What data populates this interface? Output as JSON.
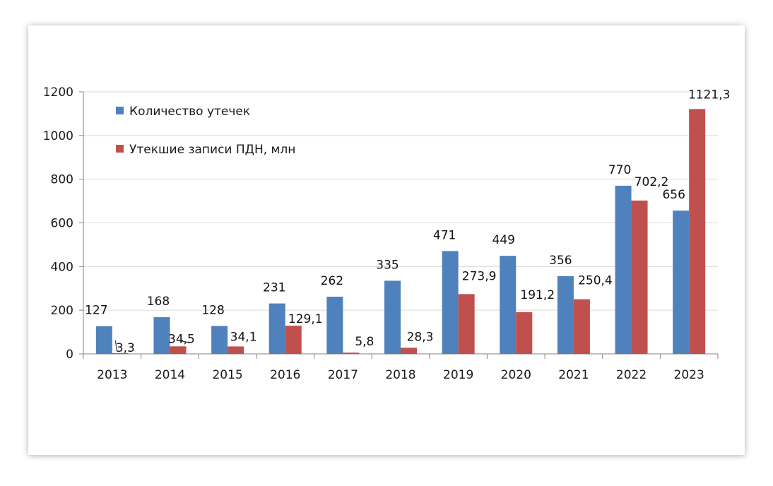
{
  "chart_data": {
    "type": "bar",
    "categories": [
      "2013",
      "2014",
      "2015",
      "2016",
      "2017",
      "2018",
      "2019",
      "2020",
      "2021",
      "2022",
      "2023"
    ],
    "series": [
      {
        "name": "Количество утечек",
        "color": "#4f81bd",
        "values": [
          127,
          168,
          128,
          231,
          262,
          335,
          471,
          449,
          356,
          770,
          656
        ],
        "labels": [
          "127",
          "168",
          "128",
          "231",
          "262",
          "335",
          "471",
          "449",
          "356",
          "770",
          "656"
        ]
      },
      {
        "name": "Утекшие записи ПДН, млн",
        "color": "#c0504d",
        "values": [
          3.3,
          34.5,
          34.1,
          129.1,
          5.8,
          28.3,
          273.9,
          191.2,
          250.4,
          702.2,
          1121.3
        ],
        "labels": [
          "3,3",
          "34,5",
          "34,1",
          "129,1",
          "5,8",
          "28,3",
          "273,9",
          "191,2",
          "250,4",
          "702,2",
          "1121,3"
        ]
      }
    ],
    "yticks": [
      "0",
      "200",
      "400",
      "600",
      "800",
      "1000",
      "1200"
    ],
    "ylim": [
      0,
      1200
    ],
    "grid": true,
    "legend_position": "top-left",
    "title": "",
    "xlabel": "",
    "ylabel": ""
  }
}
